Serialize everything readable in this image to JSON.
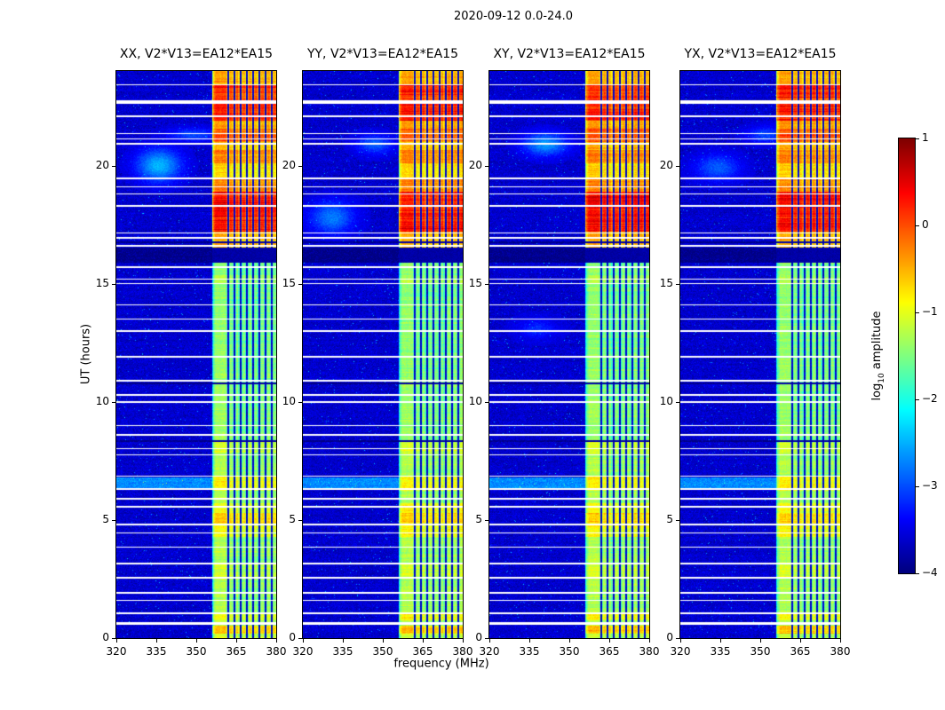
{
  "figure": {
    "title": "2020-09-12 0.0-24.0",
    "xlabel": "frequency (MHz)",
    "ylabel": "UT (hours)",
    "colorbar_label_prefix": "log",
    "colorbar_label_sub": "10",
    "colorbar_label_suffix": " amplitude"
  },
  "chart_data": {
    "type": "heatmap",
    "title": "2020-09-12 0.0-24.0",
    "xlabel": "frequency (MHz)",
    "ylabel": "UT (hours)",
    "x_range_mhz": [
      320,
      380
    ],
    "x_ticks": [
      320,
      335,
      350,
      365,
      380
    ],
    "y_range_hours": [
      0,
      24
    ],
    "y_ticks": [
      0,
      5,
      10,
      15,
      20
    ],
    "colorbar": {
      "label": "log10 amplitude",
      "min": -4,
      "max": 1,
      "ticks": [
        1,
        0,
        -1,
        -2,
        -3,
        -4
      ],
      "colormap": "jet"
    },
    "panels": [
      {
        "pol": "XX",
        "title": "XX, V2*V13=EA12*EA15",
        "diffuse_blobs": [
          {
            "t": 20.0,
            "f": 336,
            "st": 0.5,
            "sf": 6,
            "amp": 1.15
          },
          {
            "t": 21.3,
            "f": 349,
            "st": 0.2,
            "sf": 7,
            "amp": 0.6
          }
        ]
      },
      {
        "pol": "YY",
        "title": "YY, V2*V13=EA12*EA15",
        "diffuse_blobs": [
          {
            "t": 17.8,
            "f": 331,
            "st": 0.5,
            "sf": 6,
            "amp": 0.85
          },
          {
            "t": 20.9,
            "f": 347,
            "st": 0.3,
            "sf": 5,
            "amp": 0.7
          }
        ]
      },
      {
        "pol": "XY",
        "title": "XY, V2*V13=EA12*EA15",
        "diffuse_blobs": [
          {
            "t": 20.9,
            "f": 341,
            "st": 0.35,
            "sf": 6,
            "amp": 1.0
          },
          {
            "t": 13.1,
            "f": 338,
            "st": 0.3,
            "sf": 5,
            "amp": 0.45
          }
        ]
      },
      {
        "pol": "YX",
        "title": "YX, V2*V13=EA12*EA15",
        "diffuse_blobs": [
          {
            "t": 19.9,
            "f": 334,
            "st": 0.4,
            "sf": 6,
            "amp": 0.7
          },
          {
            "t": 21.3,
            "f": 352,
            "st": 0.25,
            "sf": 5,
            "amp": 0.6
          }
        ]
      }
    ],
    "features": {
      "background_level": -3.62,
      "rfi_band_mhz": [
        356,
        380
      ],
      "flagged_channels_mhz": [
        362,
        364.3,
        366.6,
        369,
        371.3,
        373.6,
        376,
        378.3
      ],
      "band_default_level": -1.35,
      "band_time_profile": [
        [
          0.0,
          0.18,
          -1.2
        ],
        [
          0.18,
          0.52,
          -0.65
        ],
        [
          0.75,
          1.1,
          -0.95
        ],
        [
          2.5,
          3.2,
          -1.15
        ],
        [
          4.3,
          4.9,
          -0.95
        ],
        [
          4.9,
          5.3,
          -0.7
        ],
        [
          5.3,
          5.7,
          -0.95
        ],
        [
          6.25,
          6.85,
          -0.9
        ],
        [
          7.8,
          8.35,
          -1.15
        ],
        [
          8.35,
          12.0,
          -1.45
        ],
        [
          12.0,
          15.0,
          -1.5
        ],
        [
          15.0,
          15.35,
          -1.3
        ],
        [
          15.35,
          15.88,
          -1.5
        ],
        [
          16.45,
          17.2,
          -0.55
        ],
        [
          17.2,
          18.9,
          0.25
        ],
        [
          18.9,
          19.5,
          -0.35
        ],
        [
          19.5,
          20.1,
          -0.75
        ],
        [
          20.1,
          20.65,
          -0.35
        ],
        [
          20.65,
          21.0,
          -0.6
        ],
        [
          21.0,
          21.55,
          -0.15
        ],
        [
          21.55,
          21.9,
          -0.45
        ],
        [
          21.9,
          22.7,
          0.2
        ],
        [
          22.7,
          23.45,
          0.1
        ],
        [
          23.45,
          24.0,
          -0.5
        ]
      ],
      "white_gap_rows_hours": [
        [
          23.42,
          0.06
        ],
        [
          22.68,
          0.15
        ],
        [
          22.08,
          0.07
        ],
        [
          21.35,
          0.07
        ],
        [
          21.12,
          0.06
        ],
        [
          20.93,
          0.06
        ],
        [
          19.45,
          0.07
        ],
        [
          19.1,
          0.06
        ],
        [
          18.8,
          0.06
        ],
        [
          18.3,
          0.07
        ],
        [
          17.15,
          0.06
        ],
        [
          16.93,
          0.06
        ],
        [
          16.6,
          0.07
        ],
        [
          15.7,
          0.09
        ],
        [
          15.2,
          0.06
        ],
        [
          15.0,
          0.06
        ],
        [
          14.1,
          0.06
        ],
        [
          13.5,
          0.07
        ],
        [
          13.0,
          0.06
        ],
        [
          11.9,
          0.07
        ],
        [
          10.9,
          0.06
        ],
        [
          10.3,
          0.06
        ],
        [
          10.0,
          0.07
        ],
        [
          9.0,
          0.06
        ],
        [
          8.6,
          0.06
        ],
        [
          8.02,
          0.07
        ],
        [
          7.75,
          0.06
        ],
        [
          6.85,
          0.06
        ],
        [
          6.3,
          0.06
        ],
        [
          5.9,
          0.07
        ],
        [
          5.55,
          0.06
        ],
        [
          4.8,
          0.06
        ],
        [
          4.45,
          0.07
        ],
        [
          3.85,
          0.06
        ],
        [
          3.15,
          0.07
        ],
        [
          2.55,
          0.06
        ],
        [
          1.9,
          0.07
        ],
        [
          1.6,
          0.06
        ],
        [
          1.05,
          0.06
        ],
        [
          0.62,
          0.13
        ]
      ],
      "dark_rows_hours": [
        [
          16.75,
          0.1
        ],
        [
          16.5,
          0.07
        ],
        [
          10.78,
          0.07
        ],
        [
          8.33,
          0.07
        ]
      ],
      "dark_band_hours": [
        15.88,
        16.45
      ],
      "cyan_band_hours": [
        6.3,
        6.8
      ]
    }
  }
}
